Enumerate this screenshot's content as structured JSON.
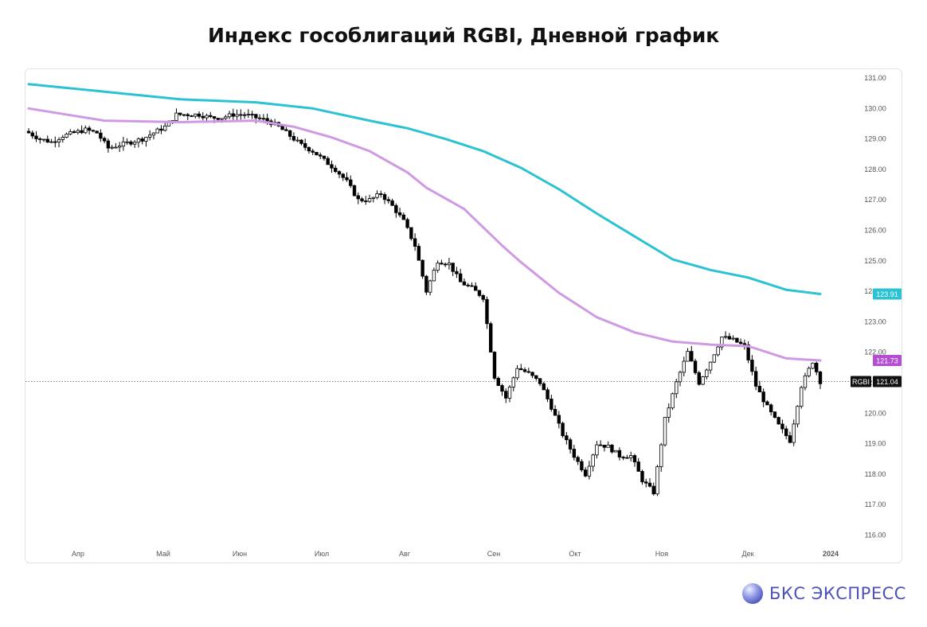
{
  "title": "Индекс гособлигаций RGBI, Дневной график",
  "brand": {
    "name": "БКС ЭКСПРЕСС"
  },
  "colors": {
    "sma_long": "#2bc3d4",
    "sma_short": "#cf9ae3",
    "candle_up": "#ffffff",
    "candle_down": "#000000",
    "badge_rgbi": "#111111",
    "badge_cyan": "#2bc3d4",
    "badge_purple": "#b34fd0",
    "brand": "#4b52b8"
  },
  "chart_data": {
    "type": "candlestick",
    "instrument": "RGBI",
    "ylim": [
      115.6,
      131.3
    ],
    "y_ticks": [
      "131.00",
      "130.00",
      "129.00",
      "128.00",
      "127.00",
      "126.00",
      "125.00",
      "124.00",
      "123.00",
      "122.00",
      "121.00",
      "120.00",
      "119.00",
      "118.00",
      "117.00",
      "116.00"
    ],
    "x_ticks": [
      "Апр",
      "Май",
      "Июн",
      "Июл",
      "Авг",
      "Сен",
      "Окт",
      "Ноя",
      "Дек",
      "2024"
    ],
    "close_series": [
      {
        "x": 0,
        "y": 129.2
      },
      {
        "x": 3,
        "y": 129.0
      },
      {
        "x": 6,
        "y": 128.9
      },
      {
        "x": 9,
        "y": 129.1
      },
      {
        "x": 12,
        "y": 129.2
      },
      {
        "x": 15,
        "y": 129.3
      },
      {
        "x": 18,
        "y": 129.2
      },
      {
        "x": 21,
        "y": 128.7
      },
      {
        "x": 24,
        "y": 128.8
      },
      {
        "x": 27,
        "y": 128.9
      },
      {
        "x": 30,
        "y": 129.0
      },
      {
        "x": 33,
        "y": 129.2
      },
      {
        "x": 36,
        "y": 129.4
      },
      {
        "x": 39,
        "y": 129.8
      },
      {
        "x": 42,
        "y": 129.8
      },
      {
        "x": 45,
        "y": 129.8
      },
      {
        "x": 48,
        "y": 129.7
      },
      {
        "x": 51,
        "y": 129.7
      },
      {
        "x": 54,
        "y": 129.8
      },
      {
        "x": 57,
        "y": 129.8
      },
      {
        "x": 60,
        "y": 129.7
      },
      {
        "x": 63,
        "y": 129.6
      },
      {
        "x": 66,
        "y": 129.4
      },
      {
        "x": 69,
        "y": 129.1
      },
      {
        "x": 72,
        "y": 128.8
      },
      {
        "x": 75,
        "y": 128.6
      },
      {
        "x": 78,
        "y": 128.3
      },
      {
        "x": 81,
        "y": 128.0
      },
      {
        "x": 84,
        "y": 127.6
      },
      {
        "x": 87,
        "y": 127.0
      },
      {
        "x": 90,
        "y": 127.0
      },
      {
        "x": 93,
        "y": 127.2
      },
      {
        "x": 96,
        "y": 126.8
      },
      {
        "x": 99,
        "y": 126.3
      },
      {
        "x": 102,
        "y": 125.5
      },
      {
        "x": 105,
        "y": 124.0
      },
      {
        "x": 108,
        "y": 125.0
      },
      {
        "x": 111,
        "y": 124.9
      },
      {
        "x": 114,
        "y": 124.3
      },
      {
        "x": 117,
        "y": 124.1
      },
      {
        "x": 120,
        "y": 123.8
      },
      {
        "x": 123,
        "y": 121.2
      },
      {
        "x": 126,
        "y": 120.5
      },
      {
        "x": 129,
        "y": 121.5
      },
      {
        "x": 132,
        "y": 121.3
      },
      {
        "x": 135,
        "y": 121.0
      },
      {
        "x": 138,
        "y": 120.2
      },
      {
        "x": 141,
        "y": 119.3
      },
      {
        "x": 144,
        "y": 118.6
      },
      {
        "x": 147,
        "y": 118.0
      },
      {
        "x": 150,
        "y": 119.0
      },
      {
        "x": 153,
        "y": 118.9
      },
      {
        "x": 156,
        "y": 118.6
      },
      {
        "x": 159,
        "y": 118.6
      },
      {
        "x": 162,
        "y": 117.8
      },
      {
        "x": 165,
        "y": 117.4
      },
      {
        "x": 168,
        "y": 119.8
      },
      {
        "x": 171,
        "y": 121.0
      },
      {
        "x": 174,
        "y": 122.0
      },
      {
        "x": 177,
        "y": 121.0
      },
      {
        "x": 180,
        "y": 121.7
      },
      {
        "x": 183,
        "y": 122.5
      },
      {
        "x": 186,
        "y": 122.4
      },
      {
        "x": 189,
        "y": 122.2
      },
      {
        "x": 192,
        "y": 120.9
      },
      {
        "x": 195,
        "y": 120.2
      },
      {
        "x": 198,
        "y": 119.6
      },
      {
        "x": 201,
        "y": 119.1
      },
      {
        "x": 204,
        "y": 120.9
      },
      {
        "x": 207,
        "y": 121.7
      },
      {
        "x": 209,
        "y": 121.04
      }
    ],
    "sma_short": [
      {
        "x": 0,
        "y": 130.0
      },
      {
        "x": 20,
        "y": 129.6
      },
      {
        "x": 40,
        "y": 129.55
      },
      {
        "x": 60,
        "y": 129.6
      },
      {
        "x": 70,
        "y": 129.4
      },
      {
        "x": 80,
        "y": 129.05
      },
      {
        "x": 90,
        "y": 128.6
      },
      {
        "x": 100,
        "y": 127.9
      },
      {
        "x": 105,
        "y": 127.4
      },
      {
        "x": 110,
        "y": 127.05
      },
      {
        "x": 115,
        "y": 126.7
      },
      {
        "x": 120,
        "y": 126.1
      },
      {
        "x": 125,
        "y": 125.5
      },
      {
        "x": 130,
        "y": 124.95
      },
      {
        "x": 140,
        "y": 123.95
      },
      {
        "x": 150,
        "y": 123.15
      },
      {
        "x": 160,
        "y": 122.65
      },
      {
        "x": 170,
        "y": 122.35
      },
      {
        "x": 180,
        "y": 122.25
      },
      {
        "x": 190,
        "y": 122.2
      },
      {
        "x": 200,
        "y": 121.8
      },
      {
        "x": 209,
        "y": 121.73
      }
    ],
    "sma_long": [
      {
        "x": 0,
        "y": 130.8
      },
      {
        "x": 20,
        "y": 130.55
      },
      {
        "x": 40,
        "y": 130.3
      },
      {
        "x": 60,
        "y": 130.2
      },
      {
        "x": 75,
        "y": 130.0
      },
      {
        "x": 90,
        "y": 129.6
      },
      {
        "x": 100,
        "y": 129.35
      },
      {
        "x": 110,
        "y": 129.0
      },
      {
        "x": 120,
        "y": 128.6
      },
      {
        "x": 130,
        "y": 128.05
      },
      {
        "x": 140,
        "y": 127.35
      },
      {
        "x": 150,
        "y": 126.55
      },
      {
        "x": 160,
        "y": 125.8
      },
      {
        "x": 170,
        "y": 125.05
      },
      {
        "x": 180,
        "y": 124.7
      },
      {
        "x": 190,
        "y": 124.45
      },
      {
        "x": 200,
        "y": 124.05
      },
      {
        "x": 209,
        "y": 123.91
      }
    ],
    "price_labels": [
      {
        "name": "RGBI",
        "value": "121.04"
      },
      {
        "value": "123.91"
      },
      {
        "value": "121.73"
      }
    ]
  }
}
